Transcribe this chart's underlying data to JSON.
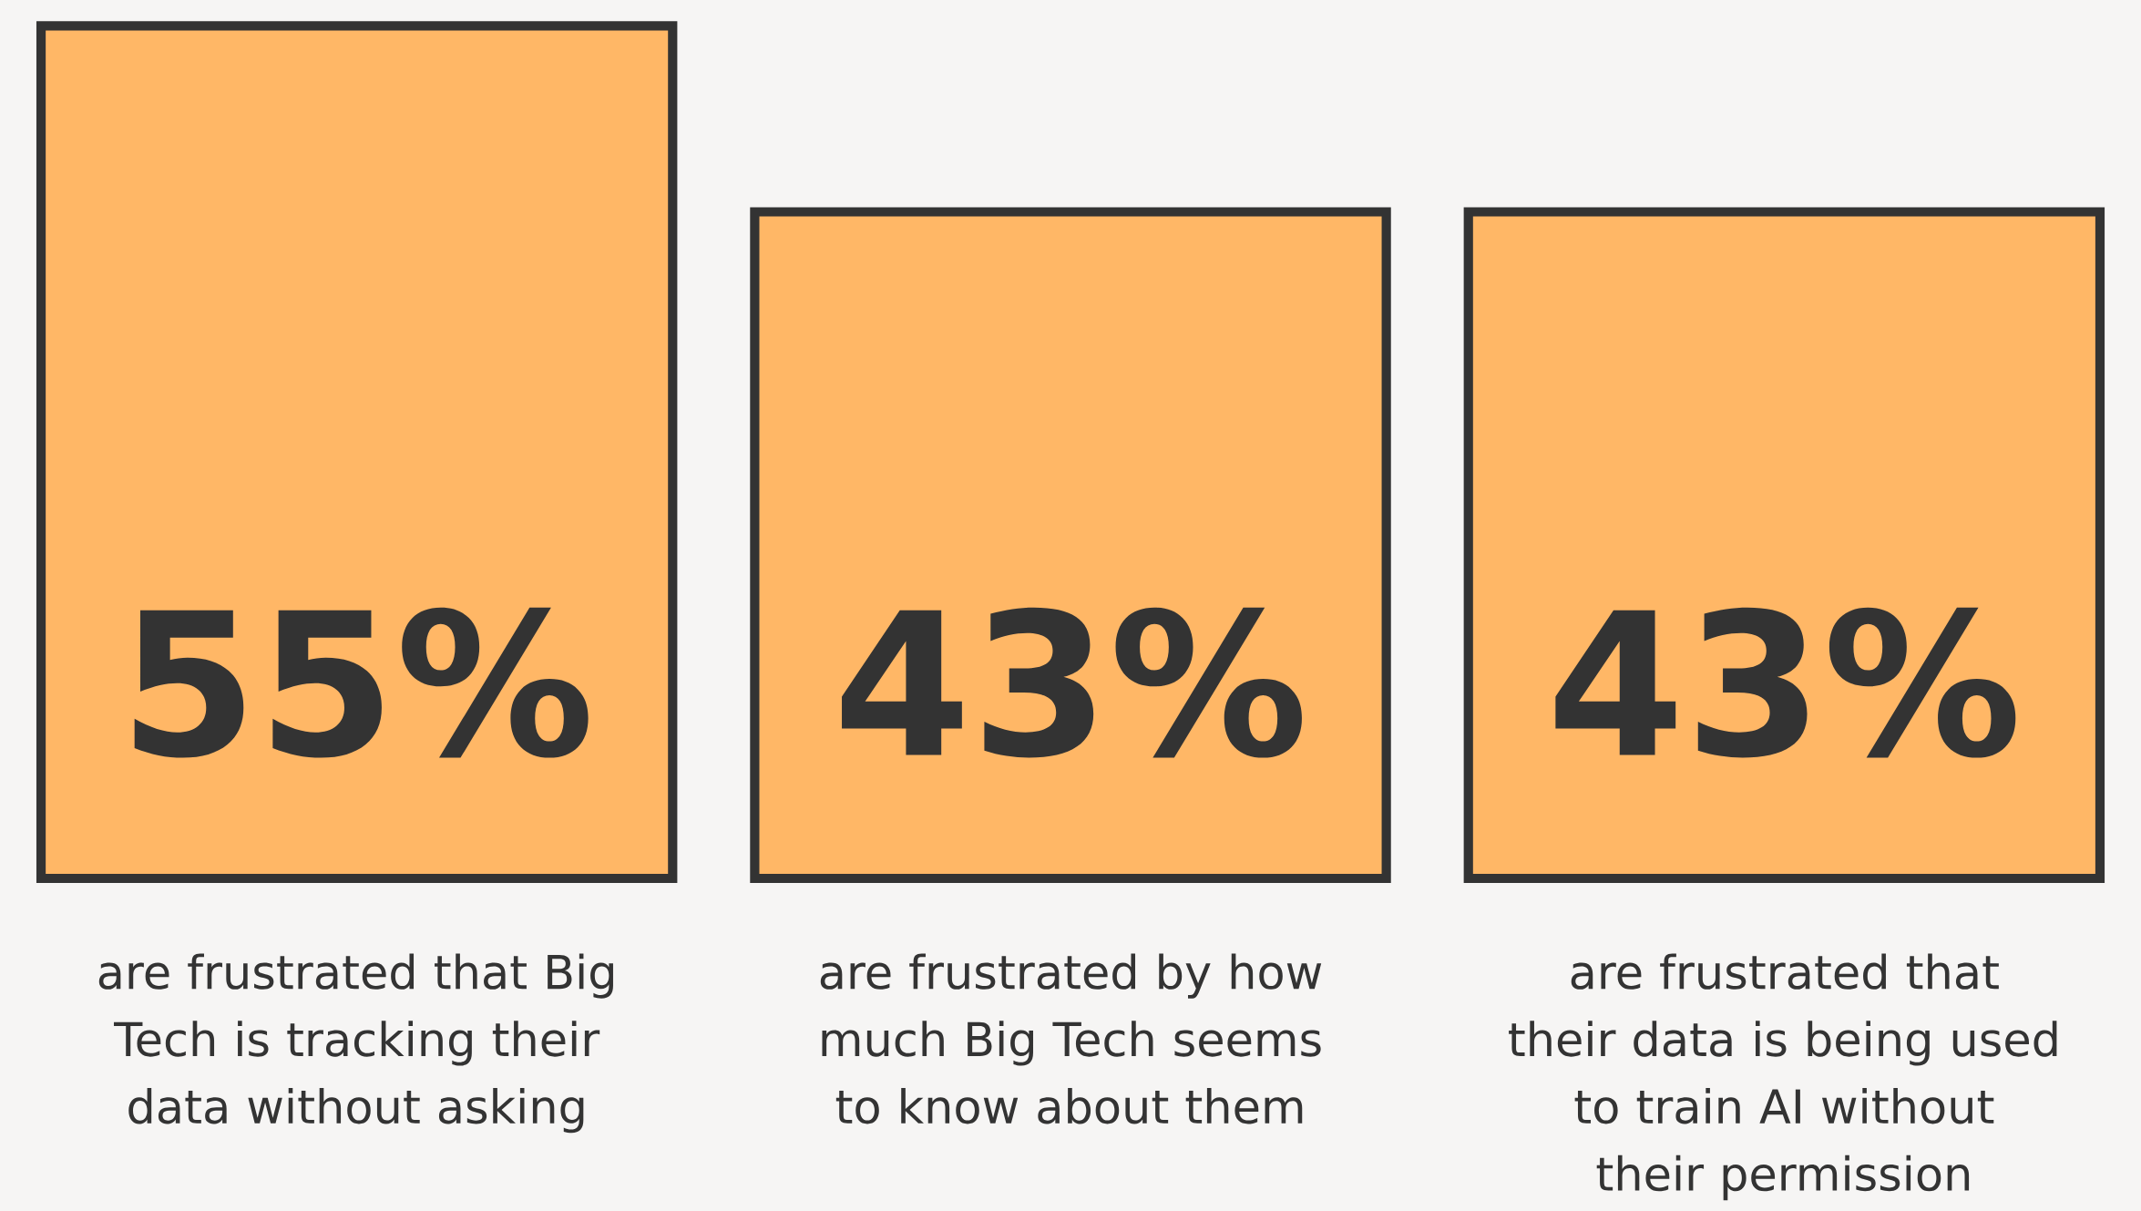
{
  "chart_data": {
    "type": "bar",
    "categories": [
      "are frustrated that Big Tech is tracking their data without asking",
      "are frustrated by how much Big Tech seems to know about them",
      "are frustrated that their data is being used to train AI without their permission"
    ],
    "values": [
      55,
      43,
      43
    ],
    "value_labels": [
      "55%",
      "43%",
      "43%"
    ],
    "color": "#ffb766"
  }
}
